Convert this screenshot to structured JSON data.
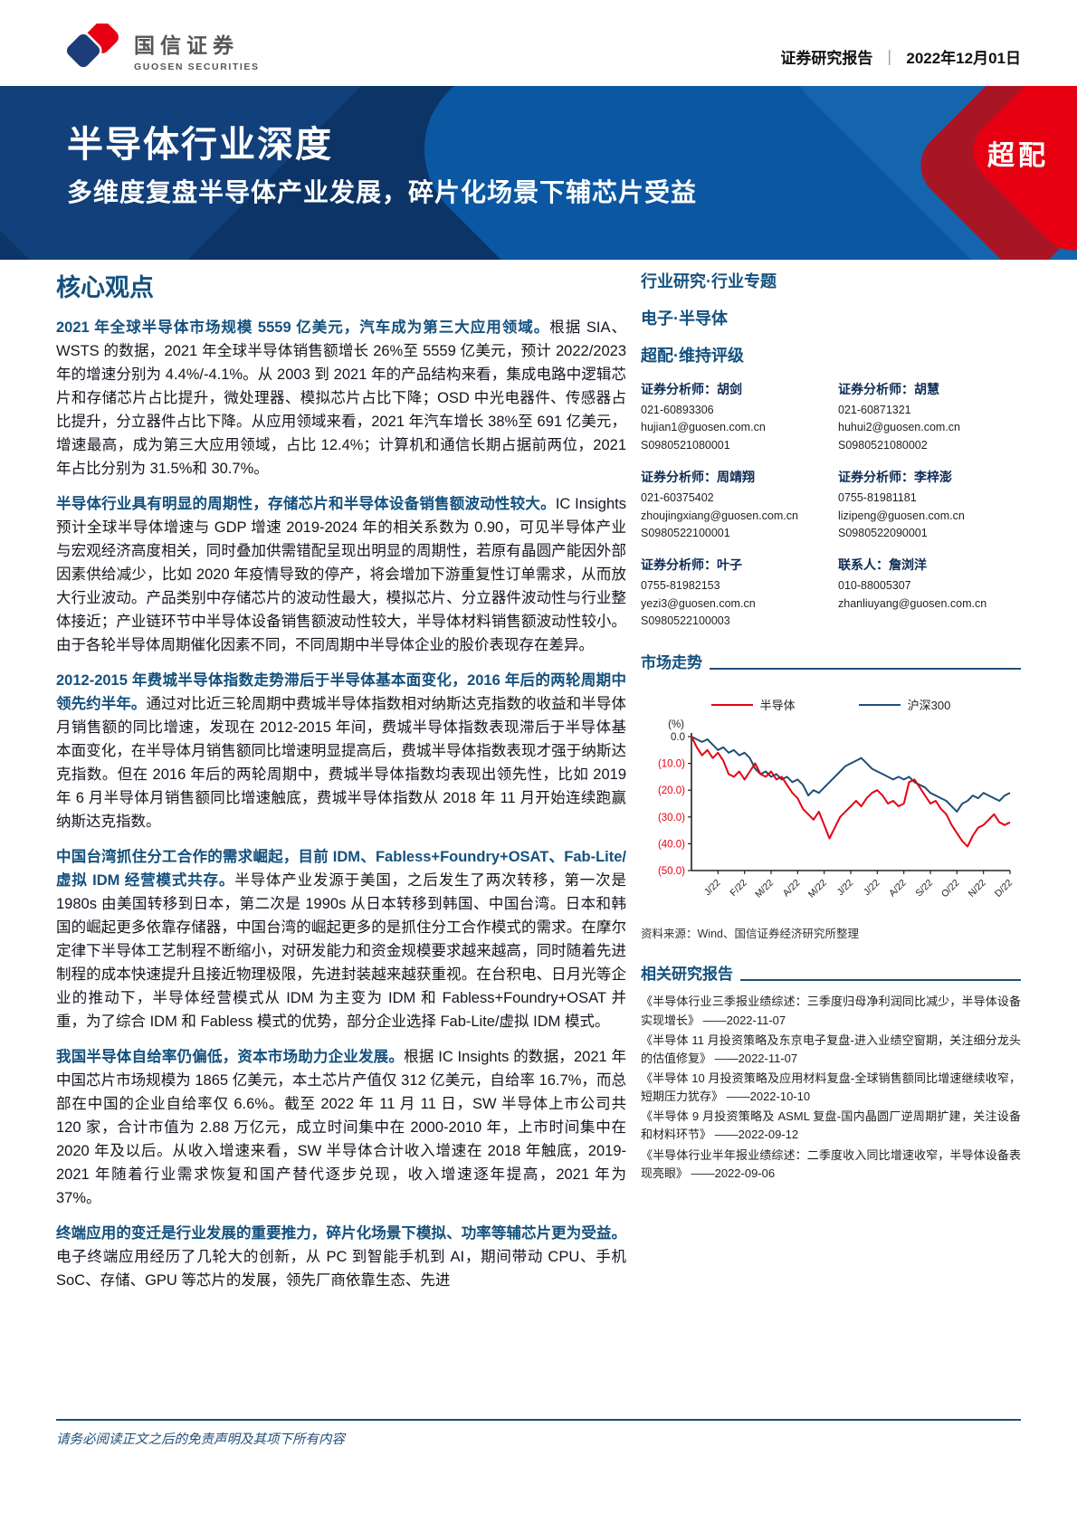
{
  "header": {
    "logo_cn": "国信证券",
    "logo_en": "GUOSEN SECURITIES",
    "report_type": "证券研究报告",
    "separator": "｜",
    "date": "2022年12月01日"
  },
  "banner": {
    "title": "半导体行业深度",
    "subtitle": "多维度复盘半导体产业发展，碎片化场景下辅芯片受益",
    "rating_badge": "超配",
    "colors": {
      "navy": "#0d3466",
      "light_blue": "#0b57a2",
      "badge_red": "#e60012"
    }
  },
  "left": {
    "section_title": "核心观点",
    "paragraphs": [
      {
        "lead": "2021 年全球半导体市场规模 5559 亿美元，汽车成为第三大应用领域。",
        "body": "根据 SIA、WSTS 的数据，2021 年全球半导体销售额增长 26%至 5559 亿美元，预计 2022/2023 年的增速分别为 4.4%/-4.1%。从 2003 到 2021 年的产品结构来看，集成电路中逻辑芯片和存储芯片占比提升，微处理器、模拟芯片占比下降；OSD 中光电器件、传感器占比提升，分立器件占比下降。从应用领域来看，2021 年汽车增长 38%至 691 亿美元，增速最高，成为第三大应用领域，占比 12.4%；计算机和通信长期占据前两位，2021 年占比分别为 31.5%和 30.7%。"
      },
      {
        "lead": "半导体行业具有明显的周期性，存储芯片和半导体设备销售额波动性较大。",
        "body": "IC Insights 预计全球半导体增速与 GDP 增速 2019-2024 年的相关系数为 0.90，可见半导体产业与宏观经济高度相关，同时叠加供需错配呈现出明显的周期性，若原有晶圆产能因外部因素供给减少，比如 2020 年疫情导致的停产，将会增加下游重复性订单需求，从而放大行业波动。产品类别中存储芯片的波动性最大，模拟芯片、分立器件波动性与行业整体接近；产业链环节中半导体设备销售额波动性较大，半导体材料销售额波动性较小。由于各轮半导体周期催化因素不同，不同周期中半导体企业的股价表现存在差异。"
      },
      {
        "lead": "2012-2015 年费城半导体指数走势滞后于半导体基本面变化，2016 年后的两轮周期中领先约半年。",
        "body": "通过对比近三轮周期中费城半导体指数相对纳斯达克指数的收益和半导体月销售额的同比增速，发现在 2012-2015 年间，费城半导体指数表现滞后于半导体基本面变化，在半导体月销售额同比增速明显提高后，费城半导体指数表现才强于纳斯达克指数。但在 2016 年后的两轮周期中，费城半导体指数均表现出领先性，比如 2019 年 6 月半导体月销售额同比增速触底，费城半导体指数从 2018 年 11 月开始连续跑赢纳斯达克指数。"
      },
      {
        "lead": "中国台湾抓住分工合作的需求崛起，目前 IDM、Fabless+Foundry+OSAT、Fab-Lite/虚拟 IDM 经营模式共存。",
        "body": "半导体产业发源于美国，之后发生了两次转移，第一次是 1980s 由美国转移到日本，第二次是 1990s 从日本转移到韩国、中国台湾。日本和韩国的崛起更多依靠存储器，中国台湾的崛起更多的是抓住分工合作模式的需求。在摩尔定律下半导体工艺制程不断缩小，对研发能力和资金规模要求越来越高，同时随着先进制程的成本快速提升且接近物理极限，先进封装越来越获重视。在台积电、日月光等企业的推动下，半导体经营模式从 IDM 为主变为 IDM 和 Fabless+Foundry+OSAT 并重，为了综合 IDM 和 Fabless 模式的优势，部分企业选择 Fab-Lite/虚拟 IDM 模式。"
      },
      {
        "lead": "我国半导体自给率仍偏低，资本市场助力企业发展。",
        "body": "根据 IC Insights 的数据，2021 年中国芯片市场规模为 1865 亿美元，本土芯片产值仅 312 亿美元，自给率 16.7%，而总部在中国的企业自给率仅 6.6%。截至 2022 年 11 月 11 日，SW 半导体上市公司共 120 家，合计市值为 2.88 万亿元，成立时间集中在 2000-2010 年，上市时间集中在 2020 年及以后。从收入增速来看，SW 半导体合计收入增速在 2018 年触底，2019-2021 年随着行业需求恢复和国产替代逐步兑现，收入增速逐年提高，2021 年为 37%。"
      },
      {
        "lead": "终端应用的变迁是行业发展的重要推力，碎片化场景下模拟、功率等辅芯片更为受益。",
        "body": "电子终端应用经历了几轮大的创新，从 PC 到智能手机到 AI，期间带动 CPU、手机 SoC、存储、GPU 等芯片的发展，领先厂商依靠生态、先进"
      }
    ]
  },
  "right": {
    "research_type": "行业研究·行业专题",
    "sector": "电子·半导体",
    "rating_line": "超配·维持评级",
    "analysts": [
      {
        "role": "证券分析师：",
        "name": "胡剑",
        "phone": "021-60893306",
        "email": "hujian1@guosen.com.cn",
        "cert": "S0980521080001"
      },
      {
        "role": "证券分析师：",
        "name": "胡慧",
        "phone": "021-60871321",
        "email": "huhui2@guosen.com.cn",
        "cert": "S0980521080002"
      },
      {
        "role": "证券分析师：",
        "name": "周靖翔",
        "phone": "021-60375402",
        "email": "zhoujingxiang@guosen.com.cn",
        "cert": "S0980522100001"
      },
      {
        "role": "证券分析师：",
        "name": "李梓澎",
        "phone": "0755-81981181",
        "email": "lizipeng@guosen.com.cn",
        "cert": "S0980522090001"
      },
      {
        "role": "证券分析师：",
        "name": "叶子",
        "phone": "0755-81982153",
        "email": "yezi3@guosen.com.cn",
        "cert": "S0980522100003"
      },
      {
        "role": "联系人：",
        "name": "詹浏洋",
        "phone": "010-88005307",
        "email": "zhanliuyang@guosen.com.cn",
        "cert": ""
      }
    ],
    "market_trend_title": "市场走势",
    "source": "资料来源：Wind、国信证券经济研究所整理",
    "reports_title": "相关研究报告",
    "reports": [
      "《半导体行业三季报业绩综述：三季度归母净利润同比减少，半导体设备实现增长》 ——2022-11-07",
      "《半导体 11 月投资策略及东京电子复盘-进入业绩空窗期，关注细分龙头的估值修复》 ——2022-11-07",
      "《半导体 10 月投资策略及应用材料复盘-全球销售额同比增速继续收窄，短期压力犹存》 ——2022-10-10",
      "《半导体 9 月投资策略及 ASML 复盘-国内晶圆厂逆周期扩建，关注设备和材料环节》 ——2022-09-12",
      "《半导体行业半年报业绩综述：二季度收入同比增速收窄，半导体设备表现亮眼》 ——2022-09-06"
    ]
  },
  "footer": {
    "disclaimer": "请务必阅读正文之后的免责声明及其项下所有内容"
  },
  "chart_data": {
    "type": "line",
    "title": "市场走势",
    "unit": "(%)",
    "x_labels": [
      "J/22",
      "F/22",
      "M/22",
      "A/22",
      "M/22",
      "J/22",
      "J/22",
      "A/22",
      "S/22",
      "O/22",
      "N/22",
      "D/22"
    ],
    "ylim": [
      -50,
      0
    ],
    "ytick_values": [
      0,
      -10,
      -20,
      -30,
      -40,
      -50
    ],
    "ytick_labels": [
      "0.0",
      "(10.0)",
      "(20.0)",
      "(30.0)",
      "(40.0)",
      "(50.0)"
    ],
    "grid": false,
    "legend_position": "top",
    "series": [
      {
        "name": "半导体",
        "color": "#e60012",
        "values": [
          0,
          -4,
          -7,
          -5,
          -8,
          -6,
          -9,
          -14,
          -15,
          -13,
          -16,
          -13,
          -10,
          -14,
          -15,
          -13,
          -16,
          -15,
          -18,
          -21,
          -23,
          -27,
          -29,
          -31,
          -28,
          -33,
          -38,
          -34,
          -30,
          -28,
          -26,
          -24,
          -26,
          -23,
          -21,
          -20,
          -22,
          -25,
          -24,
          -26,
          -25,
          -17,
          -16,
          -19,
          -22,
          -25,
          -24,
          -27,
          -29,
          -33,
          -36,
          -39,
          -41,
          -37,
          -34,
          -33,
          -31,
          -29,
          -32,
          -33,
          -32
        ]
      },
      {
        "name": "沪深300",
        "color": "#1f4e79",
        "values": [
          0,
          -1,
          -2,
          -1,
          -3,
          -5,
          -4,
          -6,
          -5,
          -7,
          -6,
          -8,
          -12,
          -14,
          -13,
          -15,
          -14,
          -16,
          -15,
          -17,
          -16,
          -18,
          -22,
          -20,
          -21,
          -19,
          -17,
          -15,
          -13,
          -11,
          -10,
          -9,
          -8,
          -10,
          -12,
          -13,
          -14,
          -15,
          -16,
          -15,
          -16,
          -15,
          -17,
          -18,
          -19,
          -21,
          -22,
          -23,
          -24,
          -26,
          -28,
          -25,
          -24,
          -22,
          -23,
          -21,
          -22,
          -23,
          -24,
          -22,
          -21
        ]
      }
    ]
  }
}
